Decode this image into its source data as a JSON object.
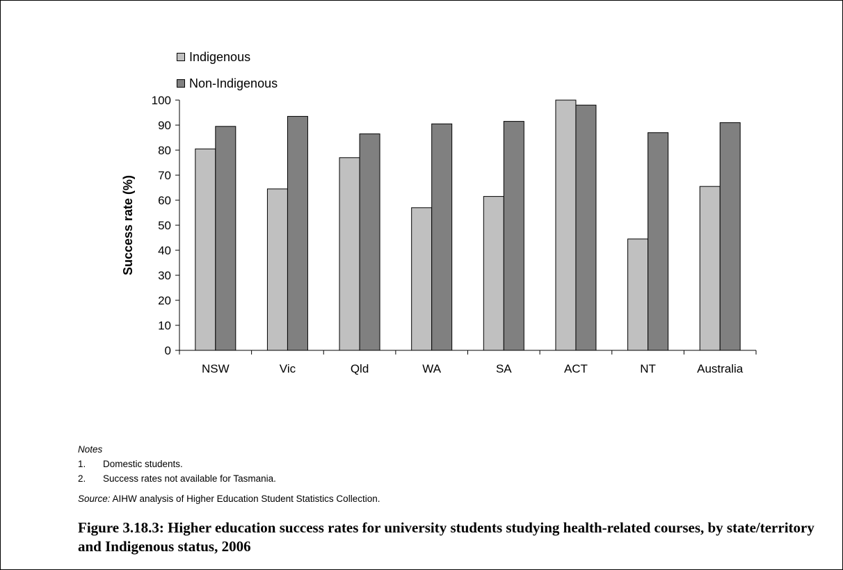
{
  "chart_data": {
    "type": "bar",
    "categories": [
      "NSW",
      "Vic",
      "Qld",
      "WA",
      "SA",
      "ACT",
      "NT",
      "Australia"
    ],
    "series": [
      {
        "name": "Indigenous",
        "values": [
          80.5,
          64.5,
          77,
          57,
          61.5,
          100,
          44.5,
          65.5
        ],
        "color": "#c0c0c0"
      },
      {
        "name": "Non-Indigenous",
        "values": [
          89.5,
          93.5,
          86.5,
          90.5,
          91.5,
          98,
          87,
          91
        ],
        "color": "#808080"
      }
    ],
    "ylabel": "Success rate (%)",
    "ylim": [
      0,
      100
    ],
    "yticks": [
      0,
      10,
      20,
      30,
      40,
      50,
      60,
      70,
      80,
      90,
      100
    ],
    "grid": false,
    "legend_position": "top-left"
  },
  "notes": {
    "heading": "Notes",
    "items": [
      {
        "num": "1.",
        "text": "Domestic students."
      },
      {
        "num": "2.",
        "text": "Success rates not available for Tasmania."
      }
    ],
    "source_label": "Source:",
    "source_text": " AIHW analysis of Higher Education Student Statistics Collection."
  },
  "caption": "Figure 3.18.3: Higher education success rates for university students studying health-related courses, by state/territory and Indigenous status, 2006"
}
